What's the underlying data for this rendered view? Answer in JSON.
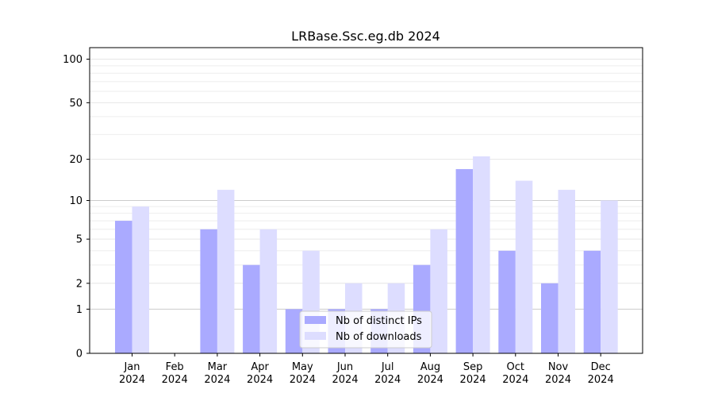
{
  "chart_data": {
    "type": "bar",
    "title": "LRBase.Ssc.eg.db 2024",
    "xlabel": "",
    "ylabel": "",
    "yscale": "log1p",
    "ylim": [
      0,
      120
    ],
    "yticks": [
      0,
      1,
      2,
      5,
      10,
      20,
      50,
      100
    ],
    "ytick_labels": [
      "0",
      "1",
      "2",
      "5",
      "10",
      "20",
      "50",
      "100"
    ],
    "grid": true,
    "legend_position": "bottom-center",
    "categories": [
      [
        "Jan",
        "2024"
      ],
      [
        "Feb",
        "2024"
      ],
      [
        "Mar",
        "2024"
      ],
      [
        "Apr",
        "2024"
      ],
      [
        "May",
        "2024"
      ],
      [
        "Jun",
        "2024"
      ],
      [
        "Jul",
        "2024"
      ],
      [
        "Aug",
        "2024"
      ],
      [
        "Sep",
        "2024"
      ],
      [
        "Oct",
        "2024"
      ],
      [
        "Nov",
        "2024"
      ],
      [
        "Dec",
        "2024"
      ]
    ],
    "series": [
      {
        "name": "Nb of distinct IPs",
        "color": "#aaaaff",
        "values": [
          7,
          0,
          6,
          3,
          1,
          1,
          1,
          3,
          17,
          4,
          2,
          4
        ]
      },
      {
        "name": "Nb of downloads",
        "color": "#ddddff",
        "values": [
          9,
          0,
          12,
          6,
          4,
          2,
          2,
          6,
          21,
          14,
          12,
          10
        ]
      }
    ]
  }
}
